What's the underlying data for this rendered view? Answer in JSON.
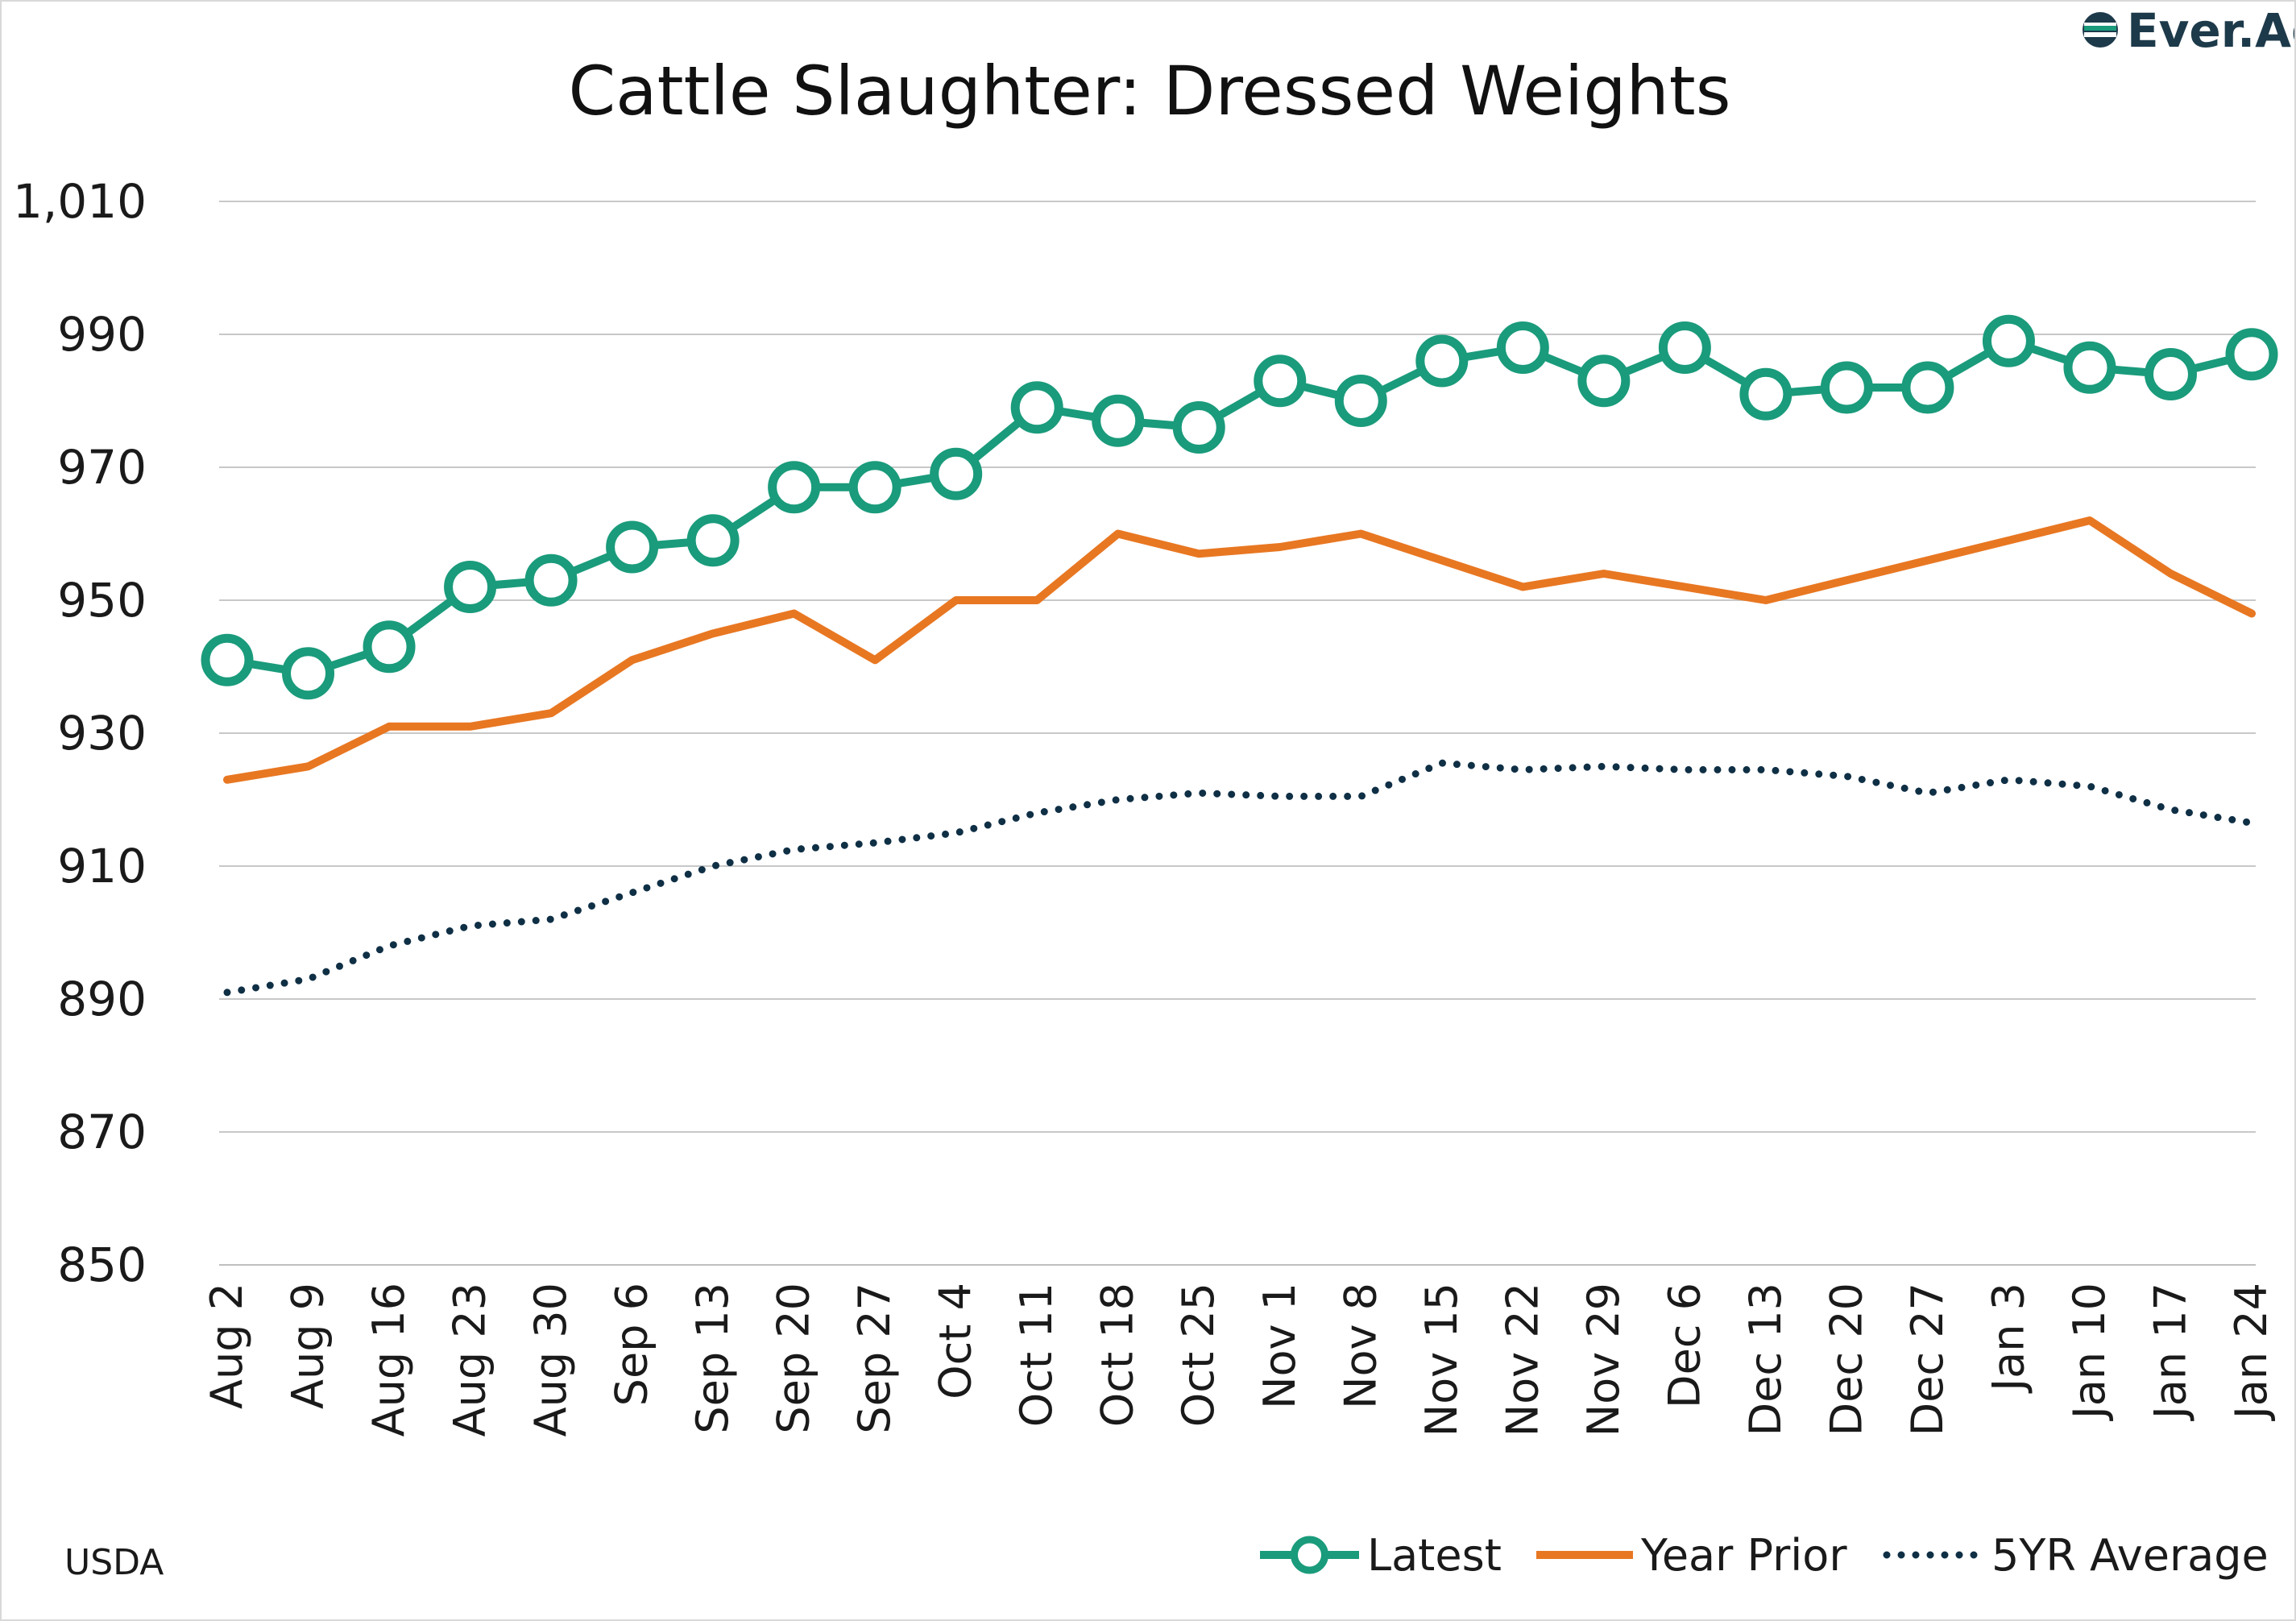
{
  "chart_data": {
    "type": "line",
    "title": "Cattle Slaughter: Dressed Weights",
    "source": "USDA",
    "logo": "Ever.Ag",
    "xlabel": "",
    "ylabel": "",
    "ylim": [
      850,
      1010
    ],
    "yticks": [
      850,
      870,
      890,
      910,
      930,
      950,
      970,
      990,
      1010
    ],
    "ytick_labels": [
      "850",
      "870",
      "890",
      "910",
      "930",
      "950",
      "970",
      "990",
      "1,010"
    ],
    "grid": true,
    "legend_position": "bottom-right",
    "categories": [
      "Aug 2",
      "Aug 9",
      "Aug 16",
      "Aug 23",
      "Aug 30",
      "Sep 6",
      "Sep 13",
      "Sep 20",
      "Sep 27",
      "Oct 4",
      "Oct 11",
      "Oct 18",
      "Oct 25",
      "Nov 1",
      "Nov 8",
      "Nov 15",
      "Nov 22",
      "Nov 29",
      "Dec 6",
      "Dec 13",
      "Dec 20",
      "Dec 27",
      "Jan 3",
      "Jan 10",
      "Jan 17",
      "Jan 24"
    ],
    "series": [
      {
        "name": "Latest",
        "style": "line-markers",
        "color": "#1a9b7b",
        "values": [
          941,
          939,
          943,
          952,
          953,
          958,
          959,
          967,
          967,
          969,
          979,
          977,
          976,
          983,
          980,
          986,
          988,
          983,
          988,
          981,
          982,
          982,
          989,
          985,
          984,
          987
        ]
      },
      {
        "name": "Year Prior",
        "style": "solid",
        "color": "#e87722",
        "values": [
          923,
          925,
          931,
          931,
          933,
          941,
          945,
          948,
          941,
          950,
          950,
          960,
          957,
          958,
          960,
          956,
          952,
          954,
          952,
          950,
          953,
          956,
          959,
          962,
          954,
          948
        ]
      },
      {
        "name": "5YR Average",
        "style": "dotted",
        "color": "#0f2f45",
        "values": [
          891,
          893,
          898,
          901,
          902,
          906,
          910,
          912.5,
          913.5,
          915,
          918,
          920,
          921,
          920.5,
          920.5,
          925.5,
          924.5,
          925,
          924.5,
          924.5,
          923.5,
          921,
          923,
          922,
          918.5,
          916.5
        ]
      }
    ]
  }
}
